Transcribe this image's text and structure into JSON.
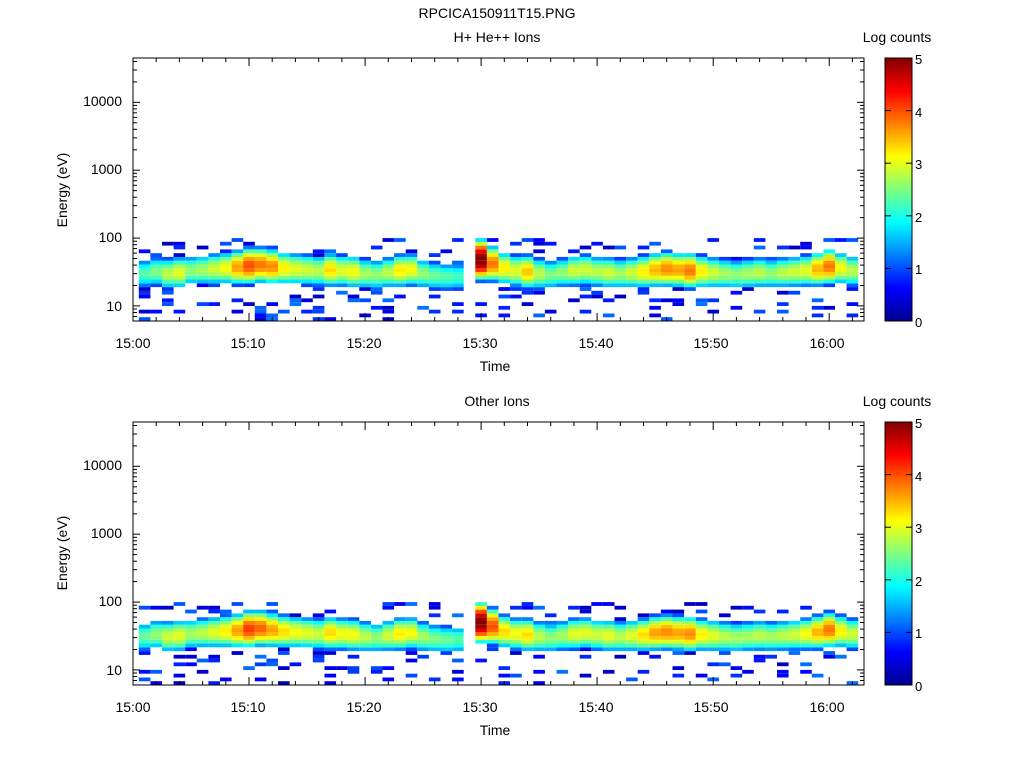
{
  "figure_title": "RPCICA150911T15.PNG",
  "colorbar_label": "Log counts",
  "colorbar_ticks": [
    "0",
    "1",
    "2",
    "3",
    "4",
    "5"
  ],
  "chart_data": [
    {
      "type": "heatmap",
      "title": "H+ He++ Ions",
      "xlabel": "Time",
      "ylabel": "Energy (eV)",
      "x_ticks": [
        "15:00",
        "15:10",
        "15:20",
        "15:30",
        "15:40",
        "15:50",
        "16:00"
      ],
      "y_ticks": [
        "10",
        "100",
        "1000",
        "10000"
      ],
      "y_scale": "log",
      "ylim": [
        6,
        45000
      ],
      "xlim": [
        "15:00",
        "16:03"
      ],
      "colorbar": {
        "label": "Log counts",
        "range": [
          0,
          5
        ]
      },
      "data_gaps": [
        [
          "15:28:30",
          "15:29:30"
        ]
      ],
      "profile": [
        [
          "15:01",
          30,
          2.3
        ],
        [
          "15:02",
          32,
          2.5
        ],
        [
          "15:03",
          30,
          2.8
        ],
        [
          "15:04",
          31,
          3.0
        ],
        [
          "15:05",
          33,
          2.6
        ],
        [
          "15:06",
          34,
          2.7
        ],
        [
          "15:07",
          35,
          2.9
        ],
        [
          "15:08",
          36,
          3.1
        ],
        [
          "15:09",
          37,
          3.6
        ],
        [
          "15:10",
          39,
          4.0
        ],
        [
          "15:11",
          40,
          3.8
        ],
        [
          "15:12",
          38,
          3.7
        ],
        [
          "15:13",
          36,
          3.2
        ],
        [
          "15:14",
          35,
          3.0
        ],
        [
          "15:15",
          34,
          2.9
        ],
        [
          "15:16",
          33,
          2.8
        ],
        [
          "15:17",
          34,
          3.3
        ],
        [
          "15:18",
          33,
          3.0
        ],
        [
          "15:19",
          32,
          3.1
        ],
        [
          "15:20",
          30,
          2.7
        ],
        [
          "15:21",
          29,
          2.6
        ],
        [
          "15:22",
          31,
          2.8
        ],
        [
          "15:23",
          33,
          3.2
        ],
        [
          "15:24",
          34,
          3.1
        ],
        [
          "15:25",
          30,
          2.6
        ],
        [
          "15:26",
          28,
          2.4
        ],
        [
          "15:27",
          27,
          2.3
        ],
        [
          "15:28",
          27,
          2.2
        ],
        [
          "15:30",
          48,
          5.0
        ],
        [
          "15:31",
          42,
          3.8
        ],
        [
          "15:32",
          36,
          3.2
        ],
        [
          "15:33",
          33,
          3.0
        ],
        [
          "15:34",
          32,
          3.4
        ],
        [
          "15:35",
          30,
          2.8
        ],
        [
          "15:36",
          29,
          2.5
        ],
        [
          "15:37",
          31,
          2.6
        ],
        [
          "15:38",
          33,
          2.9
        ],
        [
          "15:39",
          34,
          2.9
        ],
        [
          "15:40",
          32,
          2.8
        ],
        [
          "15:41",
          31,
          2.9
        ],
        [
          "15:42",
          30,
          2.7
        ],
        [
          "15:43",
          31,
          2.9
        ],
        [
          "15:44",
          32,
          3.2
        ],
        [
          "15:45",
          34,
          3.5
        ],
        [
          "15:46",
          35,
          3.7
        ],
        [
          "15:47",
          34,
          3.6
        ],
        [
          "15:48",
          33,
          3.8
        ],
        [
          "15:49",
          32,
          3.2
        ],
        [
          "15:50",
          31,
          2.9
        ],
        [
          "15:51",
          30,
          2.7
        ],
        [
          "15:52",
          29,
          2.6
        ],
        [
          "15:53",
          30,
          2.7
        ],
        [
          "15:54",
          31,
          2.8
        ],
        [
          "15:55",
          30,
          2.6
        ],
        [
          "15:56",
          31,
          2.8
        ],
        [
          "15:57",
          32,
          2.9
        ],
        [
          "15:58",
          33,
          3.0
        ],
        [
          "15:59",
          35,
          3.5
        ],
        [
          "16:00",
          38,
          3.8
        ],
        [
          "16:01",
          36,
          3.1
        ],
        [
          "16:02",
          33,
          2.8
        ]
      ]
    },
    {
      "type": "heatmap",
      "title": "Other Ions",
      "xlabel": "Time",
      "ylabel": "Energy (eV)",
      "x_ticks": [
        "15:00",
        "15:10",
        "15:20",
        "15:30",
        "15:40",
        "15:50",
        "16:00"
      ],
      "y_ticks": [
        "10",
        "100",
        "1000",
        "10000"
      ],
      "y_scale": "log",
      "ylim": [
        6,
        45000
      ],
      "xlim": [
        "15:00",
        "16:03"
      ],
      "colorbar": {
        "label": "Log counts",
        "range": [
          0,
          5
        ]
      },
      "data_gaps": [
        [
          "15:28:30",
          "15:29:30"
        ]
      ],
      "profile": [
        [
          "15:01",
          31,
          2.4
        ],
        [
          "15:02",
          33,
          2.6
        ],
        [
          "15:03",
          31,
          2.9
        ],
        [
          "15:04",
          32,
          3.0
        ],
        [
          "15:05",
          34,
          2.7
        ],
        [
          "15:06",
          35,
          2.8
        ],
        [
          "15:07",
          36,
          3.0
        ],
        [
          "15:08",
          37,
          3.2
        ],
        [
          "15:09",
          38,
          3.6
        ],
        [
          "15:10",
          40,
          4.1
        ],
        [
          "15:11",
          41,
          3.9
        ],
        [
          "15:12",
          39,
          3.6
        ],
        [
          "15:13",
          37,
          3.3
        ],
        [
          "15:14",
          36,
          3.1
        ],
        [
          "15:15",
          35,
          3.0
        ],
        [
          "15:16",
          34,
          2.9
        ],
        [
          "15:17",
          35,
          3.3
        ],
        [
          "15:18",
          34,
          3.1
        ],
        [
          "15:19",
          33,
          3.1
        ],
        [
          "15:20",
          31,
          2.8
        ],
        [
          "15:21",
          30,
          2.6
        ],
        [
          "15:22",
          32,
          2.9
        ],
        [
          "15:23",
          34,
          3.2
        ],
        [
          "15:24",
          35,
          3.1
        ],
        [
          "15:25",
          31,
          2.7
        ],
        [
          "15:26",
          29,
          2.5
        ],
        [
          "15:27",
          28,
          2.4
        ],
        [
          "15:28",
          28,
          2.3
        ],
        [
          "15:30",
          50,
          5.0
        ],
        [
          "15:31",
          44,
          4.0
        ],
        [
          "15:32",
          37,
          3.3
        ],
        [
          "15:33",
          34,
          3.1
        ],
        [
          "15:34",
          33,
          3.3
        ],
        [
          "15:35",
          31,
          2.8
        ],
        [
          "15:36",
          30,
          2.6
        ],
        [
          "15:37",
          32,
          2.7
        ],
        [
          "15:38",
          34,
          3.0
        ],
        [
          "15:39",
          35,
          3.0
        ],
        [
          "15:40",
          33,
          2.9
        ],
        [
          "15:41",
          32,
          3.0
        ],
        [
          "15:42",
          31,
          2.8
        ],
        [
          "15:43",
          32,
          3.0
        ],
        [
          "15:44",
          33,
          3.3
        ],
        [
          "15:45",
          35,
          3.6
        ],
        [
          "15:46",
          36,
          3.7
        ],
        [
          "15:47",
          35,
          3.6
        ],
        [
          "15:48",
          34,
          3.7
        ],
        [
          "15:49",
          33,
          3.2
        ],
        [
          "15:50",
          32,
          3.0
        ],
        [
          "15:51",
          31,
          2.8
        ],
        [
          "15:52",
          30,
          2.7
        ],
        [
          "15:53",
          31,
          2.7
        ],
        [
          "15:54",
          32,
          2.8
        ],
        [
          "15:55",
          31,
          2.7
        ],
        [
          "15:56",
          32,
          2.8
        ],
        [
          "15:57",
          33,
          2.9
        ],
        [
          "15:58",
          34,
          3.1
        ],
        [
          "15:59",
          36,
          3.5
        ],
        [
          "16:00",
          39,
          3.8
        ],
        [
          "16:01",
          37,
          3.2
        ],
        [
          "16:02",
          34,
          2.9
        ]
      ]
    }
  ]
}
